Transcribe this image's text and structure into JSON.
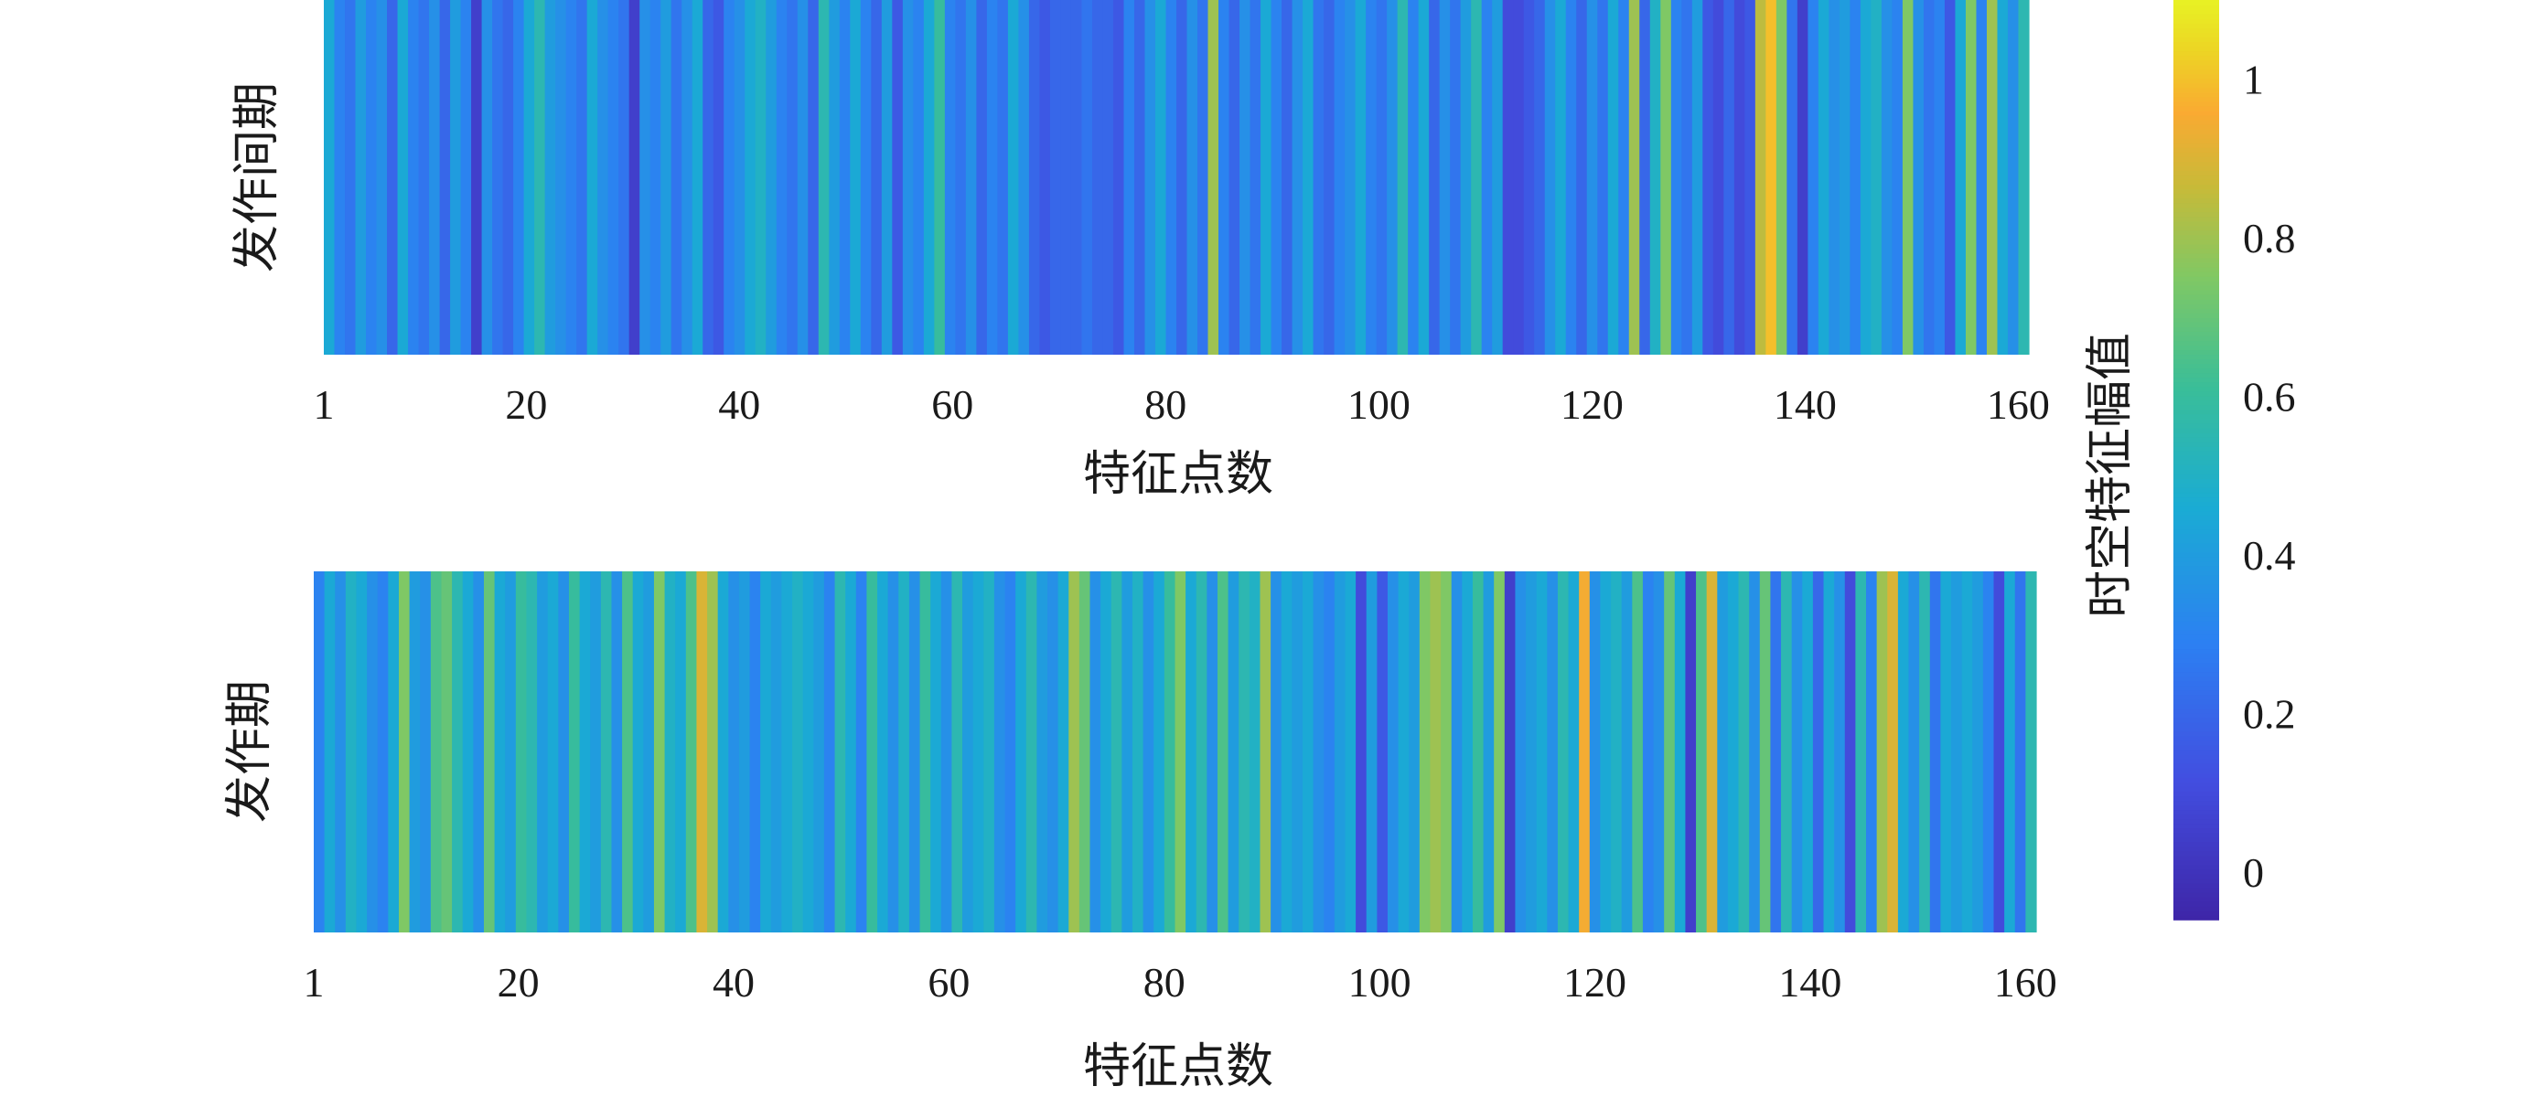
{
  "chart_data": [
    {
      "type": "heatmap",
      "title": "",
      "ylabel": "发作间期",
      "xlabel": "特征点数",
      "x_tick_labels": [
        "1",
        "20",
        "40",
        "60",
        "80",
        "100",
        "120",
        "140",
        "160"
      ],
      "x_ticks": [
        1,
        20,
        40,
        60,
        80,
        100,
        120,
        140,
        160
      ],
      "xlim": [
        1,
        161
      ],
      "values": [
        0.45,
        0.3,
        0.25,
        0.4,
        0.3,
        0.35,
        0.2,
        0.45,
        0.3,
        0.25,
        0.35,
        0.2,
        0.4,
        0.3,
        0.05,
        0.35,
        0.25,
        0.2,
        0.3,
        0.45,
        0.55,
        0.4,
        0.35,
        0.3,
        0.25,
        0.45,
        0.35,
        0.3,
        0.25,
        0.05,
        0.35,
        0.3,
        0.4,
        0.25,
        0.35,
        0.45,
        0.2,
        0.15,
        0.3,
        0.35,
        0.45,
        0.5,
        0.4,
        0.3,
        0.25,
        0.35,
        0.2,
        0.55,
        0.4,
        0.3,
        0.45,
        0.3,
        0.2,
        0.4,
        0.15,
        0.35,
        0.3,
        0.45,
        0.6,
        0.3,
        0.25,
        0.35,
        0.2,
        0.3,
        0.25,
        0.45,
        0.35,
        0.2,
        0.15,
        0.2,
        0.2,
        0.2,
        0.25,
        0.2,
        0.2,
        0.15,
        0.3,
        0.2,
        0.35,
        0.45,
        0.3,
        0.2,
        0.35,
        0.25,
        0.8,
        0.3,
        0.2,
        0.35,
        0.25,
        0.45,
        0.3,
        0.2,
        0.35,
        0.45,
        0.25,
        0.2,
        0.3,
        0.35,
        0.45,
        0.3,
        0.25,
        0.35,
        0.55,
        0.3,
        0.45,
        0.2,
        0.35,
        0.25,
        0.4,
        0.55,
        0.3,
        0.4,
        0.1,
        0.1,
        0.15,
        0.2,
        0.35,
        0.45,
        0.3,
        0.2,
        0.35,
        0.25,
        0.45,
        0.3,
        0.8,
        0.2,
        0.5,
        0.75,
        0.3,
        0.25,
        0.4,
        0.15,
        0.1,
        0.2,
        0.1,
        0.15,
        0.85,
        1.0,
        0.75,
        0.25,
        0.05,
        0.3,
        0.45,
        0.35,
        0.4,
        0.3,
        0.45,
        0.5,
        0.35,
        0.3,
        0.75,
        0.35,
        0.25,
        0.3,
        0.15,
        0.45,
        0.75,
        0.3,
        0.8,
        0.45,
        0.35,
        0.55
      ],
      "colorbar": {
        "label": "时空特征幅值",
        "tick_labels": [
          "0",
          "0.2",
          "0.4",
          "0.6",
          "0.8",
          "1"
        ],
        "ticks": [
          0,
          0.2,
          0.4,
          0.6,
          0.8,
          1
        ],
        "range": [
          -0.06,
          1.1
        ]
      }
    },
    {
      "type": "heatmap",
      "title": "",
      "ylabel": "发作期",
      "xlabel": "特征点数",
      "x_tick_labels": [
        "1",
        "20",
        "40",
        "60",
        "80",
        "100",
        "120",
        "140",
        "160"
      ],
      "x_ticks": [
        1,
        20,
        40,
        60,
        80,
        100,
        120,
        140,
        160
      ],
      "xlim": [
        1,
        161
      ],
      "values": [
        0.3,
        0.45,
        0.35,
        0.5,
        0.45,
        0.35,
        0.3,
        0.45,
        0.75,
        0.4,
        0.35,
        0.65,
        0.7,
        0.55,
        0.45,
        0.35,
        0.7,
        0.45,
        0.4,
        0.6,
        0.55,
        0.4,
        0.45,
        0.35,
        0.6,
        0.45,
        0.4,
        0.55,
        0.35,
        0.65,
        0.45,
        0.4,
        0.75,
        0.5,
        0.45,
        0.65,
        0.9,
        0.8,
        0.45,
        0.35,
        0.4,
        0.3,
        0.45,
        0.4,
        0.45,
        0.5,
        0.45,
        0.4,
        0.3,
        0.55,
        0.45,
        0.3,
        0.6,
        0.45,
        0.35,
        0.5,
        0.35,
        0.6,
        0.45,
        0.35,
        0.55,
        0.4,
        0.45,
        0.5,
        0.35,
        0.3,
        0.45,
        0.55,
        0.4,
        0.35,
        0.45,
        0.8,
        0.7,
        0.35,
        0.45,
        0.55,
        0.4,
        0.5,
        0.35,
        0.45,
        0.6,
        0.75,
        0.45,
        0.55,
        0.35,
        0.65,
        0.4,
        0.55,
        0.5,
        0.8,
        0.35,
        0.45,
        0.4,
        0.45,
        0.35,
        0.3,
        0.4,
        0.45,
        0.1,
        0.4,
        0.15,
        0.35,
        0.45,
        0.4,
        0.75,
        0.8,
        0.75,
        0.35,
        0.45,
        0.6,
        0.4,
        0.75,
        0.05,
        0.35,
        0.4,
        0.45,
        0.35,
        0.55,
        0.45,
        0.95,
        0.35,
        0.45,
        0.5,
        0.4,
        0.65,
        0.3,
        0.35,
        0.7,
        0.45,
        0.05,
        0.65,
        0.9,
        0.4,
        0.45,
        0.55,
        0.35,
        0.7,
        0.25,
        0.55,
        0.35,
        0.45,
        0.2,
        0.45,
        0.35,
        0.1,
        0.55,
        0.3,
        0.8,
        0.9,
        0.45,
        0.35,
        0.55,
        0.25,
        0.45,
        0.4,
        0.45,
        0.4,
        0.3,
        0.1,
        0.45,
        0.25,
        0.55
      ],
      "colorbar": {
        "label": "时空特征幅值",
        "tick_labels": [
          "0",
          "0.2",
          "0.4",
          "0.6",
          "0.8",
          "1"
        ],
        "ticks": [
          0,
          0.2,
          0.4,
          0.6,
          0.8,
          1
        ],
        "range": [
          -0.06,
          1.1
        ]
      }
    }
  ]
}
